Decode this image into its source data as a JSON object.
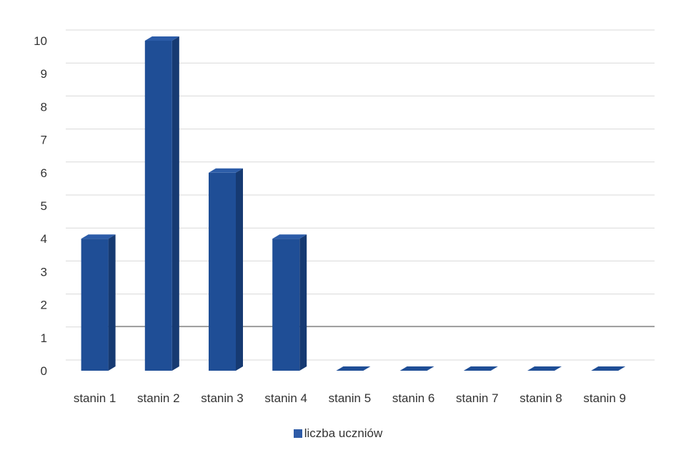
{
  "chart_data": {
    "type": "bar",
    "categories": [
      "stanin 1",
      "stanin 2",
      "stanin 3",
      "stanin 4",
      "stanin 5",
      "stanin 6",
      "stanin 7",
      "stanin 8",
      "stanin 9"
    ],
    "series": [
      {
        "name": "liczba uczniów",
        "values": [
          4,
          10,
          6,
          4,
          0,
          0,
          0,
          0,
          0
        ]
      }
    ],
    "yticks": [
      "0",
      "1",
      "2",
      "3",
      "4",
      "5",
      "6",
      "7",
      "8",
      "9",
      "10"
    ],
    "ylim": [
      0,
      10
    ],
    "grid": true,
    "legend_position": "bottom",
    "colors": {
      "bar_front": "#1F4E96",
      "bar_side": "#163A72",
      "bar_top": "#2C5CA8",
      "grid": "#D9D9D9"
    }
  }
}
